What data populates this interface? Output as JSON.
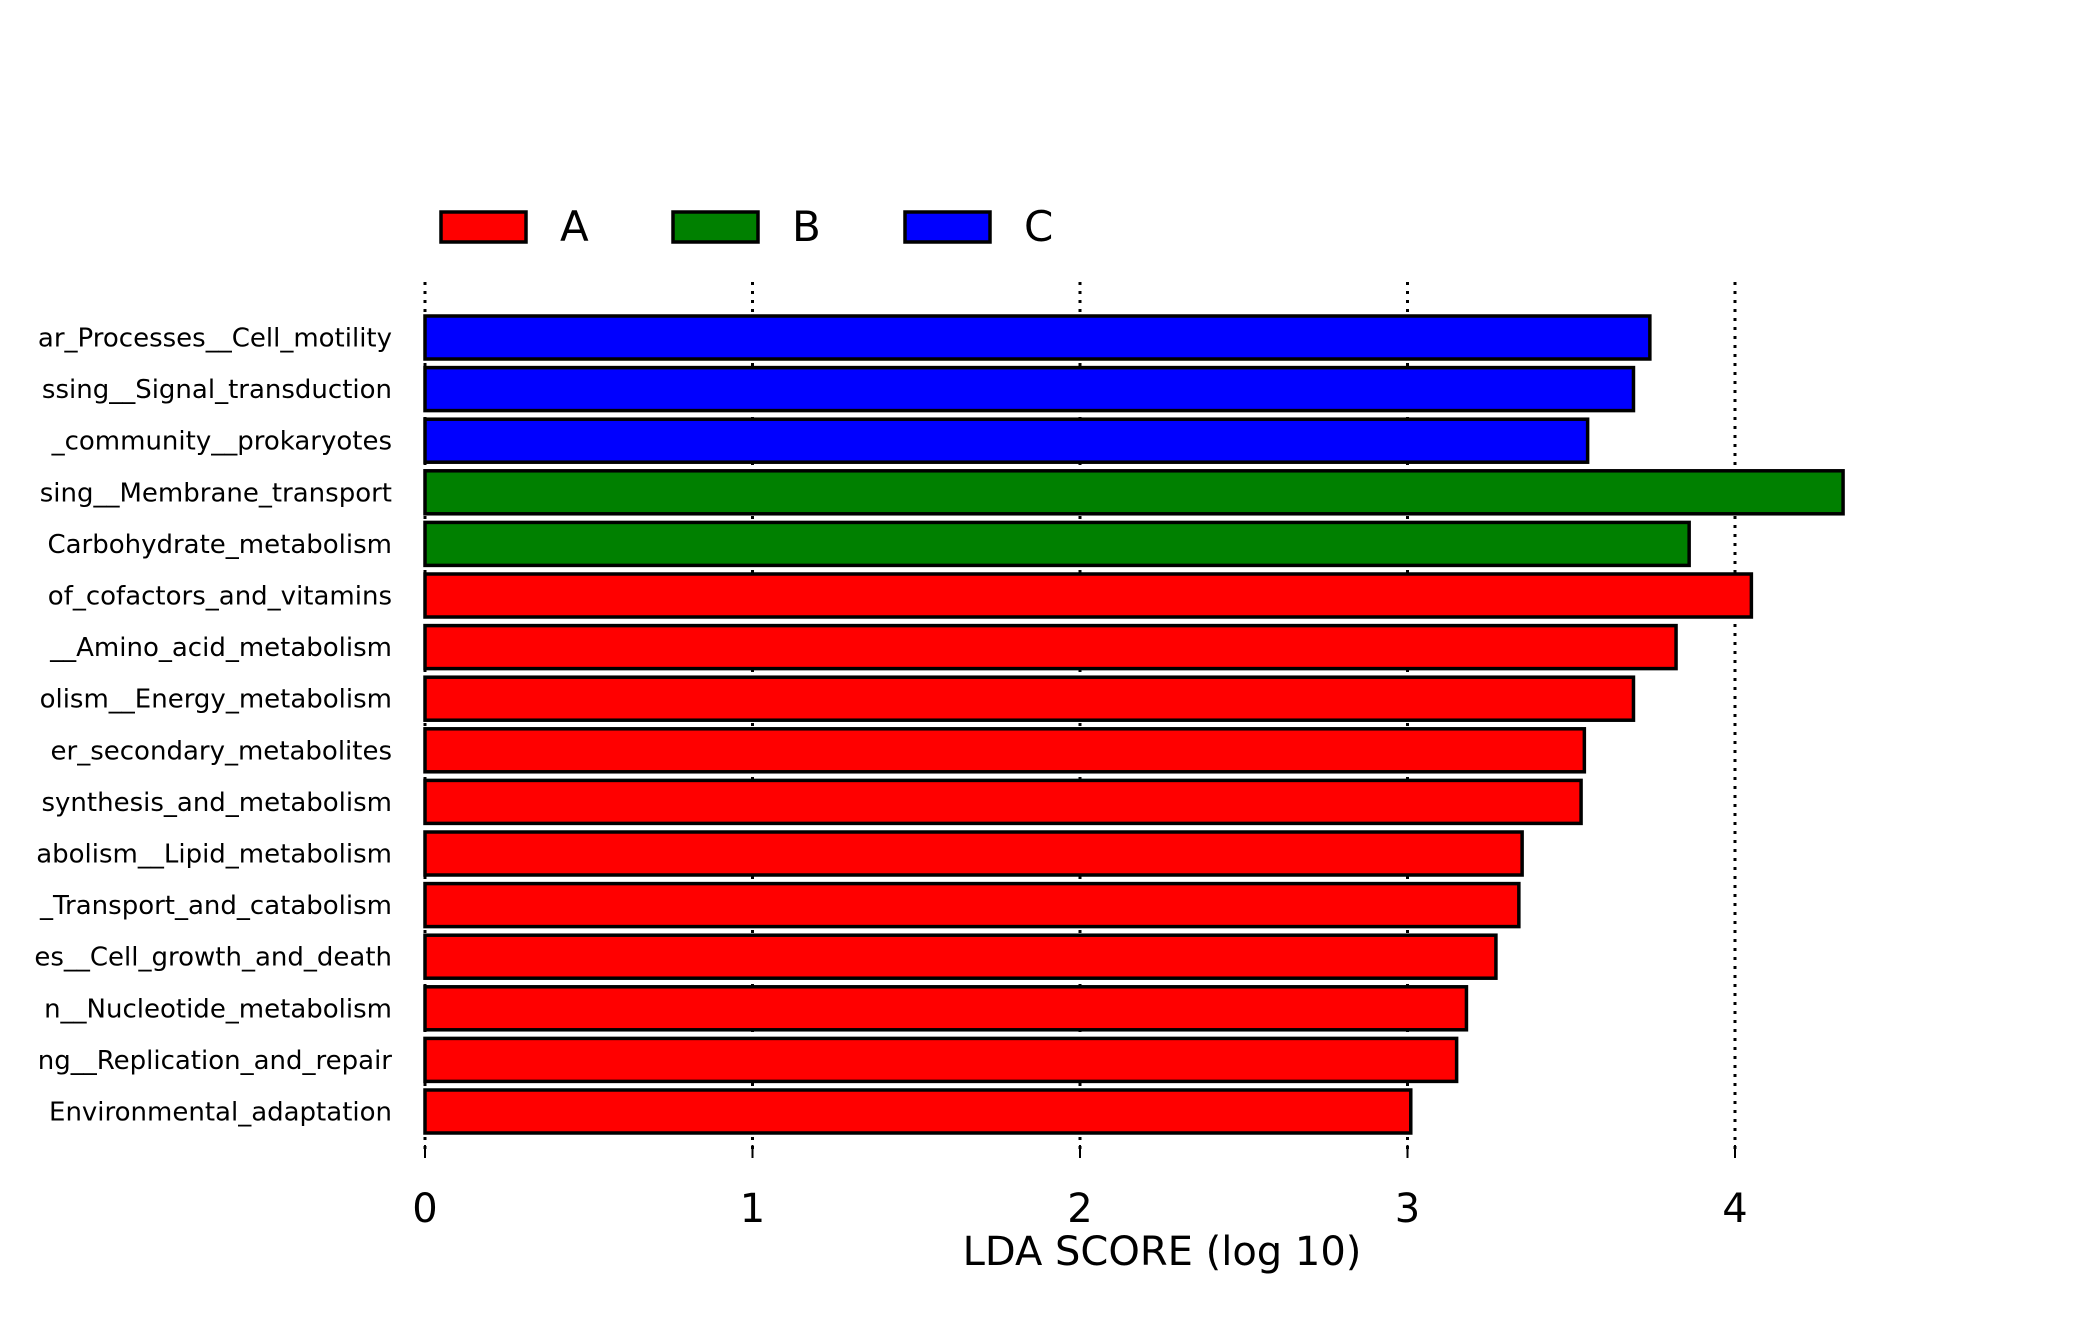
{
  "chart_data": {
    "type": "bar",
    "orientation": "horizontal",
    "xlabel": "LDA SCORE (log 10)",
    "ylabel": "",
    "xlim": [
      0,
      4.35
    ],
    "xticks": [
      "0",
      "1",
      "2",
      "3",
      "4"
    ],
    "grid": "vertical dotted lines at ticks",
    "legend_position": "top-left",
    "legend": [
      {
        "name": "A",
        "color": "#ff0000"
      },
      {
        "name": "B",
        "color": "#008000"
      },
      {
        "name": "C",
        "color": "#0000ff"
      }
    ],
    "categories": [
      "ar_Processes__Cell_motility",
      "ssing__Signal_transduction",
      "_community__prokaryotes",
      "sing__Membrane_transport",
      "Carbohydrate_metabolism",
      "of_cofactors_and_vitamins",
      "__Amino_acid_metabolism",
      "olism__Energy_metabolism",
      "er_secondary_metabolites",
      "synthesis_and_metabolism",
      "abolism__Lipid_metabolism",
      "_Transport_and_catabolism",
      "es__Cell_growth_and_death",
      "n__Nucleotide_metabolism",
      "ng__Replication_and_repair",
      "Environmental_adaptation"
    ],
    "values": [
      3.74,
      3.69,
      3.55,
      4.33,
      3.86,
      4.05,
      3.82,
      3.69,
      3.54,
      3.53,
      3.35,
      3.34,
      3.27,
      3.18,
      3.15,
      3.01
    ],
    "groups": [
      "C",
      "C",
      "C",
      "B",
      "B",
      "A",
      "A",
      "A",
      "A",
      "A",
      "A",
      "A",
      "A",
      "A",
      "A",
      "A"
    ]
  }
}
